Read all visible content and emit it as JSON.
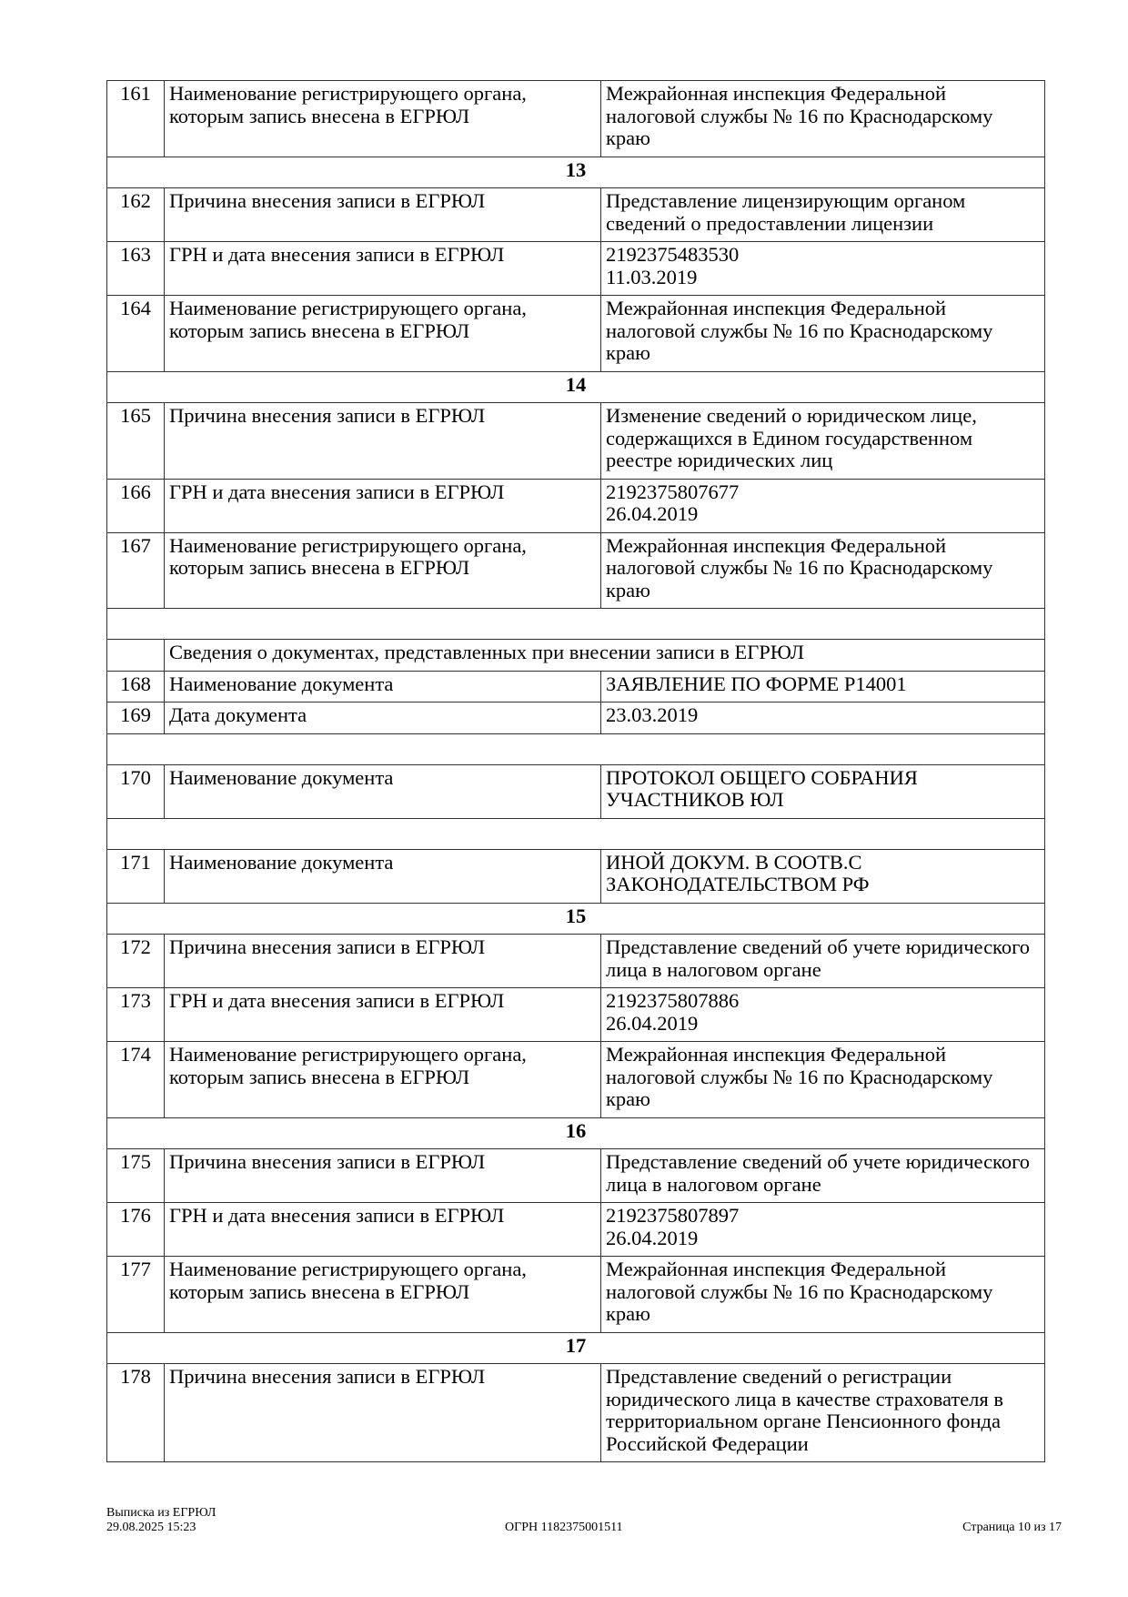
{
  "rows": [
    {
      "type": "row",
      "num": "161",
      "label": "Наименование регистрирующего органа, которым запись внесена в ЕГРЮЛ",
      "value": [
        "Межрайонная инспекция Федеральной налоговой службы № 16 по Краснодарскому краю"
      ]
    },
    {
      "type": "section",
      "title": "13"
    },
    {
      "type": "row",
      "num": "162",
      "label": "Причина внесения записи в ЕГРЮЛ",
      "value": [
        "Представление лицензирующим органом сведений о предоставлении лицензии"
      ]
    },
    {
      "type": "row",
      "num": "163",
      "label": "ГРН и дата внесения записи в ЕГРЮЛ",
      "value": [
        "2192375483530",
        "11.03.2019"
      ]
    },
    {
      "type": "row",
      "num": "164",
      "label": "Наименование регистрирующего органа, которым запись внесена в ЕГРЮЛ",
      "value": [
        "Межрайонная инспекция Федеральной налоговой службы № 16 по Краснодарскому краю"
      ]
    },
    {
      "type": "section",
      "title": "14"
    },
    {
      "type": "row",
      "num": "165",
      "label": "Причина внесения записи в ЕГРЮЛ",
      "value": [
        "Изменение сведений о юридическом лице, содержащихся в Едином государственном реестре юридических лиц"
      ]
    },
    {
      "type": "row",
      "num": "166",
      "label": "ГРН и дата внесения записи в ЕГРЮЛ",
      "value": [
        "2192375807677",
        "26.04.2019"
      ]
    },
    {
      "type": "row",
      "num": "167",
      "label": "Наименование регистрирующего органа, которым запись внесена в ЕГРЮЛ",
      "value": [
        "Межрайонная инспекция Федеральной налоговой службы № 16 по Краснодарскому краю"
      ]
    },
    {
      "type": "blank"
    },
    {
      "type": "subheader",
      "title": "Сведения о документах, представленных при внесении записи в ЕГРЮЛ"
    },
    {
      "type": "row",
      "num": "168",
      "label": "Наименование документа",
      "value": [
        "ЗАЯВЛЕНИЕ ПО ФОРМЕ Р14001"
      ]
    },
    {
      "type": "row",
      "num": "169",
      "label": "Дата документа",
      "value": [
        "23.03.2019"
      ]
    },
    {
      "type": "blank"
    },
    {
      "type": "row",
      "num": "170",
      "label": "Наименование документа",
      "value": [
        "ПРОТОКОЛ ОБЩЕГО СОБРАНИЯ УЧАСТНИКОВ ЮЛ"
      ]
    },
    {
      "type": "blank"
    },
    {
      "type": "row",
      "num": "171",
      "label": "Наименование документа",
      "value": [
        "ИНОЙ ДОКУМ. В СООТВ.С ЗАКОНОДАТЕЛЬСТВОМ РФ"
      ]
    },
    {
      "type": "section",
      "title": "15"
    },
    {
      "type": "row",
      "num": "172",
      "label": "Причина внесения записи в ЕГРЮЛ",
      "value": [
        "Представление сведений об учете юридического лица в налоговом органе"
      ]
    },
    {
      "type": "row",
      "num": "173",
      "label": "ГРН и дата внесения записи в ЕГРЮЛ",
      "value": [
        "2192375807886",
        "26.04.2019"
      ]
    },
    {
      "type": "row",
      "num": "174",
      "label": "Наименование регистрирующего органа, которым запись внесена в ЕГРЮЛ",
      "value": [
        "Межрайонная инспекция Федеральной налоговой службы № 16 по Краснодарскому краю"
      ]
    },
    {
      "type": "section",
      "title": "16"
    },
    {
      "type": "row",
      "num": "175",
      "label": "Причина внесения записи в ЕГРЮЛ",
      "value": [
        "Представление сведений об учете юридического лица в налоговом органе"
      ]
    },
    {
      "type": "row",
      "num": "176",
      "label": "ГРН и дата внесения записи в ЕГРЮЛ",
      "value": [
        "2192375807897",
        "26.04.2019"
      ]
    },
    {
      "type": "row",
      "num": "177",
      "label": "Наименование регистрирующего органа, которым запись внесена в ЕГРЮЛ",
      "value": [
        "Межрайонная инспекция Федеральной налоговой службы № 16 по Краснодарскому краю"
      ]
    },
    {
      "type": "section",
      "title": "17"
    },
    {
      "type": "row",
      "num": "178",
      "label": "Причина внесения записи в ЕГРЮЛ",
      "value": [
        "Представление сведений о регистрации юридического лица в качестве страхователя в территориальном органе Пенсионного фонда Российской Федерации"
      ]
    }
  ],
  "footer": {
    "doc_title": "Выписка из ЕГРЮЛ",
    "datetime": "29.08.2025 15:23",
    "ogrn": "ОГРН 1182375001511",
    "page": "Страница 10 из 17"
  }
}
